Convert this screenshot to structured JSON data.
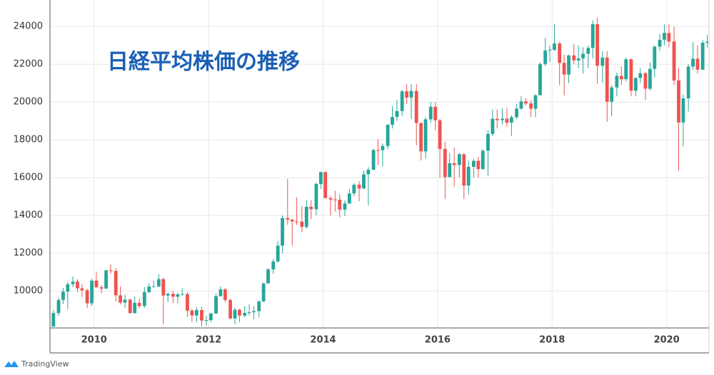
{
  "chart_data": {
    "type": "candlestick",
    "title": "日経平均株価の推移",
    "footer": "TradingView",
    "up_color": "#26a69a",
    "down_color": "#ef5350",
    "grid": true,
    "xlim": [
      2009.23,
      2020.74
    ],
    "xticks": [
      2010,
      2012,
      2014,
      2016,
      2018,
      2020
    ],
    "ylim": [
      8040,
      25400
    ],
    "yticks": [
      10000,
      12000,
      14000,
      16000,
      18000,
      20000,
      22000,
      24000
    ],
    "x": [
      2009.29,
      2009.38,
      2009.46,
      2009.54,
      2009.63,
      2009.71,
      2009.79,
      2009.88,
      2009.96,
      2010.04,
      2010.13,
      2010.21,
      2010.29,
      2010.38,
      2010.46,
      2010.54,
      2010.63,
      2010.71,
      2010.79,
      2010.88,
      2010.96,
      2011.04,
      2011.13,
      2011.21,
      2011.29,
      2011.38,
      2011.46,
      2011.54,
      2011.63,
      2011.71,
      2011.79,
      2011.88,
      2011.96,
      2012.04,
      2012.13,
      2012.21,
      2012.29,
      2012.38,
      2012.46,
      2012.54,
      2012.63,
      2012.71,
      2012.79,
      2012.88,
      2012.96,
      2013.04,
      2013.13,
      2013.21,
      2013.29,
      2013.38,
      2013.46,
      2013.54,
      2013.63,
      2013.71,
      2013.79,
      2013.88,
      2013.96,
      2014.04,
      2014.13,
      2014.21,
      2014.29,
      2014.38,
      2014.46,
      2014.54,
      2014.63,
      2014.71,
      2014.79,
      2014.88,
      2014.96,
      2015.04,
      2015.13,
      2015.21,
      2015.29,
      2015.38,
      2015.46,
      2015.54,
      2015.63,
      2015.71,
      2015.79,
      2015.88,
      2015.96,
      2016.04,
      2016.13,
      2016.21,
      2016.29,
      2016.38,
      2016.46,
      2016.54,
      2016.63,
      2016.71,
      2016.79,
      2016.88,
      2016.96,
      2017.04,
      2017.13,
      2017.21,
      2017.29,
      2017.38,
      2017.46,
      2017.54,
      2017.63,
      2017.71,
      2017.79,
      2017.88,
      2017.96,
      2018.04,
      2018.13,
      2018.21,
      2018.29,
      2018.38,
      2018.46,
      2018.54,
      2018.63,
      2018.71,
      2018.79,
      2018.88,
      2018.96,
      2019.04,
      2019.13,
      2019.21,
      2019.29,
      2019.38,
      2019.46,
      2019.54,
      2019.63,
      2019.71,
      2019.79,
      2019.88,
      2019.96,
      2020.04,
      2020.13,
      2020.21,
      2020.29,
      2020.38,
      2020.46,
      2020.54,
      2020.63,
      2020.71
    ],
    "open": [
      8110,
      8828,
      9523,
      9958,
      10357,
      10492,
      10133,
      10034,
      9345,
      10546,
      10198,
      10126,
      11089,
      11057,
      9768,
      9382,
      9537,
      8824,
      9369,
      9202,
      9937,
      10228,
      10237,
      10624,
      9755,
      9849,
      9693,
      9816,
      9833,
      8955,
      8700,
      8988,
      8434,
      8455,
      8802,
      9723,
      10083,
      9520,
      8542,
      9006,
      8695,
      8839,
      8870,
      8928,
      9446,
      10395,
      11138,
      11559,
      12397,
      13860,
      13774,
      13677,
      13668,
      13388,
      14455,
      14327,
      15661,
      16291,
      14914,
      14841,
      14827,
      14304,
      14632,
      15162,
      15620,
      15424,
      16173,
      16413,
      17459,
      17450,
      17674,
      18797,
      19206,
      19520,
      20563,
      20235,
      20585,
      18890,
      17388,
      19083,
      19747,
      19033,
      17518,
      16026,
      16758,
      16666,
      17234,
      15575,
      16569,
      16887,
      16449,
      17425,
      18308,
      19114,
      19041,
      19118,
      18909,
      19196,
      19650,
      20033,
      19925,
      19646,
      20356,
      22011,
      22724,
      22764,
      23098,
      22068,
      21454,
      22467,
      22201,
      22304,
      22553,
      22865,
      24120,
      21920,
      22351,
      20014,
      20773,
      21385,
      21205,
      22259,
      20601,
      21275,
      21521,
      20704,
      21755,
      22927,
      23293,
      23656,
      23205,
      21142,
      18917,
      20193,
      21877,
      22288,
      21710,
      23139
    ],
    "high": [
      8980,
      9630,
      10170,
      10460,
      10770,
      10620,
      10340,
      10120,
      10640,
      10980,
      10300,
      11100,
      11410,
      11200,
      10240,
      9800,
      9600,
      9700,
      9600,
      10200,
      10400,
      10550,
      10890,
      10700,
      9900,
      10000,
      9900,
      10150,
      9940,
      9060,
      9150,
      9150,
      8700,
      8850,
      9860,
      10250,
      10150,
      9600,
      9100,
      9050,
      9200,
      9300,
      9200,
      9500,
      10440,
      11200,
      11700,
      12650,
      14000,
      15940,
      13800,
      14950,
      14500,
      14820,
      14800,
      15750,
      16320,
      16320,
      15000,
      15300,
      15100,
      14800,
      15400,
      15700,
      15800,
      16370,
      16550,
      17520,
      18030,
      17800,
      18820,
      19780,
      20130,
      20650,
      20950,
      20950,
      20950,
      18900,
      19200,
      20000,
      20000,
      19100,
      17900,
      17300,
      17600,
      17300,
      17280,
      16900,
      17000,
      17100,
      17500,
      18500,
      19600,
      19600,
      19670,
      19700,
      19300,
      19900,
      20300,
      20200,
      20100,
      20400,
      22100,
      23400,
      23000,
      24130,
      23200,
      22500,
      22500,
      23050,
      23000,
      22900,
      23000,
      24300,
      24450,
      22700,
      22700,
      20900,
      21560,
      21900,
      22360,
      22300,
      21300,
      21800,
      21600,
      22100,
      23000,
      23600,
      24100,
      24120,
      23990,
      21800,
      20400,
      22000,
      23180,
      23000,
      23300,
      23560
    ],
    "low": [
      8110,
      8680,
      9300,
      9050,
      10200,
      9940,
      9680,
      9080,
      9200,
      10150,
      9870,
      10100,
      10900,
      9440,
      9280,
      9100,
      8800,
      8800,
      9100,
      9100,
      9900,
      10200,
      10200,
      8230,
      9400,
      9350,
      9350,
      9750,
      8620,
      8360,
      8340,
      8130,
      8160,
      8350,
      8800,
      9700,
      9400,
      8500,
      8240,
      8360,
      8600,
      8700,
      8500,
      8600,
      9400,
      10400,
      10900,
      11500,
      12000,
      13500,
      12400,
      13500,
      13100,
      13300,
      13800,
      14000,
      15400,
      14900,
      13990,
      14200,
      13900,
      13960,
      14600,
      15000,
      14750,
      15400,
      14530,
      16400,
      16670,
      16590,
      17500,
      18600,
      19000,
      19250,
      19900,
      19100,
      17700,
      16900,
      17000,
      18900,
      18500,
      16000,
      14860,
      16000,
      15500,
      16000,
      14860,
      15100,
      16000,
      16000,
      16400,
      16100,
      18200,
      18600,
      18800,
      18700,
      18200,
      19100,
      19600,
      19800,
      19200,
      19200,
      20400,
      21900,
      22100,
      22700,
      20900,
      20350,
      21000,
      22000,
      21800,
      21500,
      21800,
      22300,
      20970,
      21000,
      18950,
      19250,
      20300,
      20900,
      21100,
      20300,
      20300,
      21000,
      20100,
      20600,
      21300,
      22700,
      23000,
      22900,
      20900,
      16360,
      17650,
      19500,
      21700,
      21500,
      21700,
      22900
    ],
    "close": [
      8828,
      9523,
      9958,
      10357,
      10492,
      10133,
      10034,
      9345,
      10546,
      10198,
      10126,
      11089,
      11057,
      9768,
      9382,
      9537,
      8824,
      9369,
      9202,
      9937,
      10228,
      10237,
      10624,
      9755,
      9849,
      9693,
      9816,
      9833,
      8955,
      8700,
      8988,
      8434,
      8455,
      8802,
      9723,
      10083,
      9520,
      8542,
      9006,
      8695,
      8839,
      8870,
      8928,
      9446,
      10395,
      11138,
      11559,
      12397,
      13860,
      13774,
      13677,
      13668,
      13388,
      14455,
      14327,
      15661,
      16291,
      14914,
      14841,
      14827,
      14304,
      14632,
      15162,
      15620,
      15424,
      16173,
      16413,
      17459,
      17450,
      17674,
      18797,
      19206,
      19520,
      20563,
      20235,
      20585,
      18890,
      17388,
      19083,
      19747,
      19033,
      17518,
      16026,
      16758,
      16666,
      17234,
      15575,
      16569,
      16887,
      16449,
      17425,
      18308,
      19114,
      19041,
      19118,
      18909,
      19196,
      19650,
      20033,
      19925,
      19646,
      20356,
      22011,
      22724,
      22764,
      23098,
      22068,
      21454,
      22467,
      22201,
      22304,
      22553,
      22865,
      24120,
      21920,
      22351,
      20014,
      20773,
      21385,
      21205,
      22259,
      20601,
      21275,
      21521,
      20704,
      21755,
      22927,
      23293,
      23656,
      23205,
      21142,
      18917,
      20193,
      21877,
      22288,
      21710,
      23139,
      23185
    ]
  }
}
